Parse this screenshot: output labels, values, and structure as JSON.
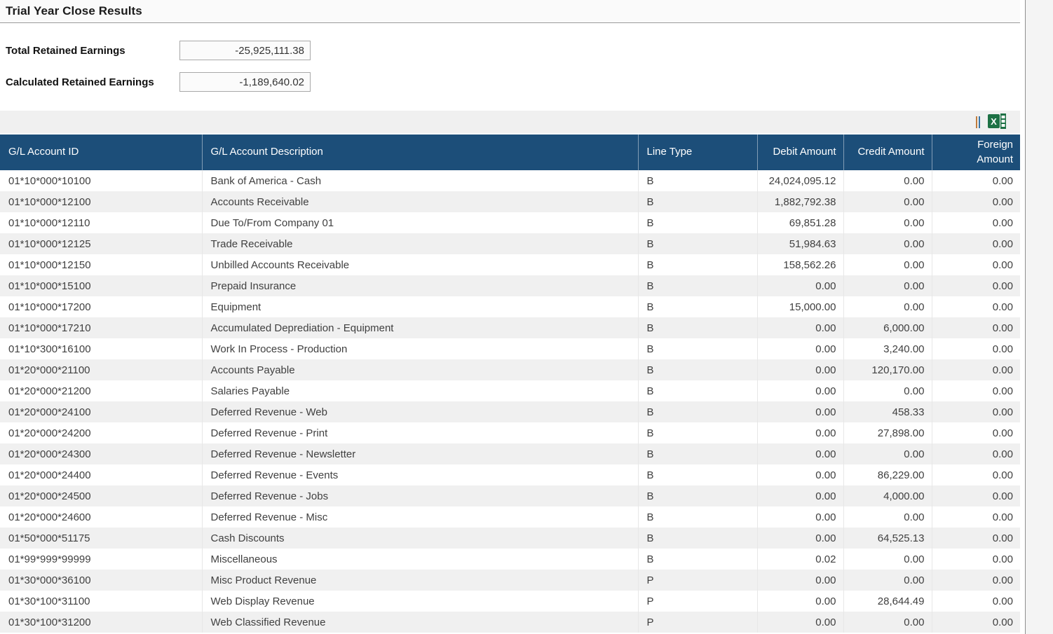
{
  "page": {
    "title": "Trial Year Close Results"
  },
  "summary": {
    "fields": [
      {
        "label": "Total Retained Earnings",
        "value": "-25,925,111.38"
      },
      {
        "label": "Calculated Retained Earnings",
        "value": "-1,189,640.02"
      }
    ]
  },
  "toolbar": {
    "icons": [
      "toolbar-divider-icon",
      "excel-export-icon"
    ],
    "export_tooltip": "Export to Excel"
  },
  "colors": {
    "header_bg": "#1c4e79",
    "row_alt_bg": "#f0f0f0",
    "excel_green": "#1e7145",
    "divider_orange": "#c07c3c",
    "divider_blue": "#3b76a8"
  },
  "table": {
    "columns": [
      {
        "label": "G/L Account ID",
        "align": "left"
      },
      {
        "label": "G/L Account Description",
        "align": "left"
      },
      {
        "label": "Line Type",
        "align": "left"
      },
      {
        "label": "Debit Amount",
        "align": "right"
      },
      {
        "label": "Credit Amount",
        "align": "right"
      },
      {
        "label": "Foreign Amount",
        "align": "right"
      }
    ],
    "rows": [
      {
        "account_id": "01*10*000*10100",
        "description": "Bank of America - Cash",
        "line_type": "B",
        "debit": "24,024,095.12",
        "credit": "0.00",
        "foreign": "0.00"
      },
      {
        "account_id": "01*10*000*12100",
        "description": "Accounts Receivable",
        "line_type": "B",
        "debit": "1,882,792.38",
        "credit": "0.00",
        "foreign": "0.00"
      },
      {
        "account_id": "01*10*000*12110",
        "description": "Due To/From Company 01",
        "line_type": "B",
        "debit": "69,851.28",
        "credit": "0.00",
        "foreign": "0.00"
      },
      {
        "account_id": "01*10*000*12125",
        "description": "Trade Receivable",
        "line_type": "B",
        "debit": "51,984.63",
        "credit": "0.00",
        "foreign": "0.00"
      },
      {
        "account_id": "01*10*000*12150",
        "description": "Unbilled Accounts Receivable",
        "line_type": "B",
        "debit": "158,562.26",
        "credit": "0.00",
        "foreign": "0.00"
      },
      {
        "account_id": "01*10*000*15100",
        "description": "Prepaid Insurance",
        "line_type": "B",
        "debit": "0.00",
        "credit": "0.00",
        "foreign": "0.00"
      },
      {
        "account_id": "01*10*000*17200",
        "description": "Equipment",
        "line_type": "B",
        "debit": "15,000.00",
        "credit": "0.00",
        "foreign": "0.00"
      },
      {
        "account_id": "01*10*000*17210",
        "description": "Accumulated Deprediation - Equipment",
        "line_type": "B",
        "debit": "0.00",
        "credit": "6,000.00",
        "foreign": "0.00"
      },
      {
        "account_id": "01*10*300*16100",
        "description": "Work In Process - Production",
        "line_type": "B",
        "debit": "0.00",
        "credit": "3,240.00",
        "foreign": "0.00"
      },
      {
        "account_id": "01*20*000*21100",
        "description": "Accounts Payable",
        "line_type": "B",
        "debit": "0.00",
        "credit": "120,170.00",
        "foreign": "0.00"
      },
      {
        "account_id": "01*20*000*21200",
        "description": "Salaries Payable",
        "line_type": "B",
        "debit": "0.00",
        "credit": "0.00",
        "foreign": "0.00"
      },
      {
        "account_id": "01*20*000*24100",
        "description": "Deferred Revenue - Web",
        "line_type": "B",
        "debit": "0.00",
        "credit": "458.33",
        "foreign": "0.00"
      },
      {
        "account_id": "01*20*000*24200",
        "description": "Deferred Revenue - Print",
        "line_type": "B",
        "debit": "0.00",
        "credit": "27,898.00",
        "foreign": "0.00"
      },
      {
        "account_id": "01*20*000*24300",
        "description": "Deferred Revenue - Newsletter",
        "line_type": "B",
        "debit": "0.00",
        "credit": "0.00",
        "foreign": "0.00"
      },
      {
        "account_id": "01*20*000*24400",
        "description": "Deferred Revenue - Events",
        "line_type": "B",
        "debit": "0.00",
        "credit": "86,229.00",
        "foreign": "0.00"
      },
      {
        "account_id": "01*20*000*24500",
        "description": "Deferred Revenue - Jobs",
        "line_type": "B",
        "debit": "0.00",
        "credit": "4,000.00",
        "foreign": "0.00"
      },
      {
        "account_id": "01*20*000*24600",
        "description": "Deferred Revenue - Misc",
        "line_type": "B",
        "debit": "0.00",
        "credit": "0.00",
        "foreign": "0.00"
      },
      {
        "account_id": "01*50*000*51175",
        "description": "Cash Discounts",
        "line_type": "B",
        "debit": "0.00",
        "credit": "64,525.13",
        "foreign": "0.00"
      },
      {
        "account_id": "01*99*999*99999",
        "description": "Miscellaneous",
        "line_type": "B",
        "debit": "0.02",
        "credit": "0.00",
        "foreign": "0.00"
      },
      {
        "account_id": "01*30*000*36100",
        "description": "Misc Product Revenue",
        "line_type": "P",
        "debit": "0.00",
        "credit": "0.00",
        "foreign": "0.00"
      },
      {
        "account_id": "01*30*100*31100",
        "description": "Web Display Revenue",
        "line_type": "P",
        "debit": "0.00",
        "credit": "28,644.49",
        "foreign": "0.00"
      },
      {
        "account_id": "01*30*100*31200",
        "description": "Web Classified Revenue",
        "line_type": "P",
        "debit": "0.00",
        "credit": "0.00",
        "foreign": "0.00"
      }
    ]
  }
}
